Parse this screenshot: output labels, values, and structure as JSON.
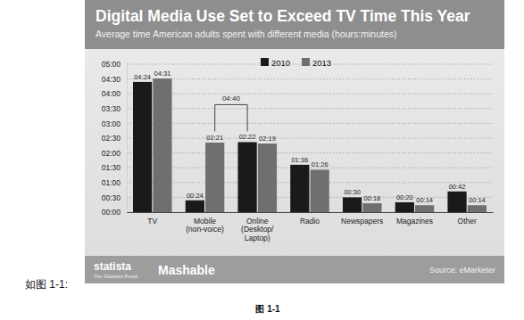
{
  "chart_data": {
    "type": "bar",
    "title": "Digital Media Use Set to Exceed TV Time This Year",
    "subtitle": "Average time American adults spent with different media (hours:minutes)",
    "categories": [
      "TV",
      "Mobile\n(non-voice)",
      "Online\n(Desktop/\nLaptop)",
      "Radio",
      "Newspapers",
      "Magazines",
      "Other"
    ],
    "series": [
      {
        "name": "2010",
        "color": "#1a1a1a",
        "values": [
          264,
          24,
          142,
          96,
          30,
          20,
          42
        ],
        "value_labels": [
          "04:24",
          "00:24",
          "02:22",
          "01:36",
          "00:30",
          "00:20",
          "00:42"
        ]
      },
      {
        "name": "2013",
        "color": "#6f6f6f",
        "values": [
          271,
          141,
          139,
          86,
          18,
          14,
          14
        ],
        "value_labels": [
          "04:31",
          "02:21",
          "02:19",
          "01:26",
          "00:18",
          "00:14",
          "00:14"
        ]
      }
    ],
    "ylim": [
      0,
      300
    ],
    "yticks": [
      {
        "value": 0,
        "label": "00:00"
      },
      {
        "value": 30,
        "label": "00:30"
      },
      {
        "value": 60,
        "label": "01:00"
      },
      {
        "value": 90,
        "label": "01:30"
      },
      {
        "value": 120,
        "label": "02:00"
      },
      {
        "value": 150,
        "label": "02:30"
      },
      {
        "value": 180,
        "label": "03:00"
      },
      {
        "value": 210,
        "label": "03:30"
      },
      {
        "value": 240,
        "label": "04:00"
      },
      {
        "value": 270,
        "label": "04:30"
      },
      {
        "value": 300,
        "label": "05:00"
      }
    ],
    "grid": true,
    "legend": "top",
    "data_labels": true,
    "annotations": [
      "04:40"
    ],
    "footer": [
      "statista",
      "The Statistics Portal",
      "Mashable"
    ],
    "source": "Source: eMarketer",
    "intro": "如图 1-1:",
    "caption": "图 1-1"
  }
}
